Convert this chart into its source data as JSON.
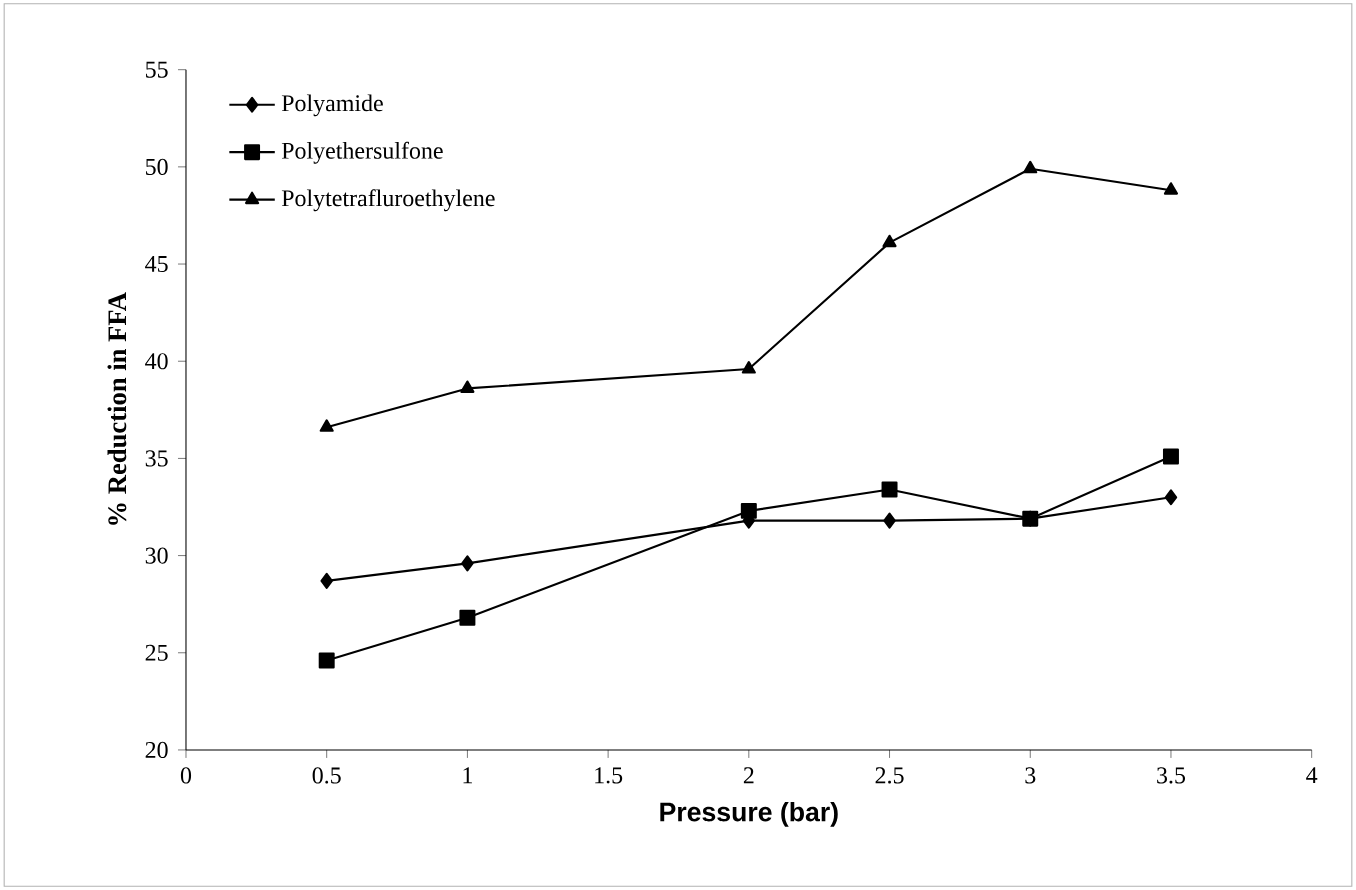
{
  "chart_data": {
    "type": "line",
    "xlabel": "Pressure (bar)",
    "ylabel": "% Reduction in FFA",
    "xlim": [
      0,
      4
    ],
    "xticks": [
      0,
      0.5,
      1,
      1.5,
      2,
      2.5,
      3,
      3.5,
      4
    ],
    "ylim": [
      20,
      55
    ],
    "yticks": [
      20,
      25,
      30,
      35,
      40,
      45,
      50,
      55
    ],
    "grid": false,
    "legend": "top left",
    "line_style": "solid",
    "series": [
      {
        "name": "Polyamide",
        "color": "#000000",
        "marker": "diamond",
        "x": [
          0.5,
          1,
          2,
          2.5,
          3,
          3.5
        ],
        "values": [
          28.7,
          29.6,
          31.8,
          31.8,
          31.9,
          33.0
        ]
      },
      {
        "name": "Polyethersulfone",
        "color": "#000000",
        "marker": "square",
        "x": [
          0.5,
          1,
          2,
          2.5,
          3,
          3.5
        ],
        "values": [
          24.6,
          26.8,
          32.3,
          33.4,
          31.9,
          35.1
        ]
      },
      {
        "name": "Polytetrafluroethylene",
        "color": "#000000",
        "marker": "triangle",
        "x": [
          0.5,
          1,
          2,
          2.5,
          3,
          3.5
        ],
        "values": [
          36.6,
          38.6,
          39.6,
          46.1,
          49.9,
          48.8
        ]
      }
    ]
  }
}
